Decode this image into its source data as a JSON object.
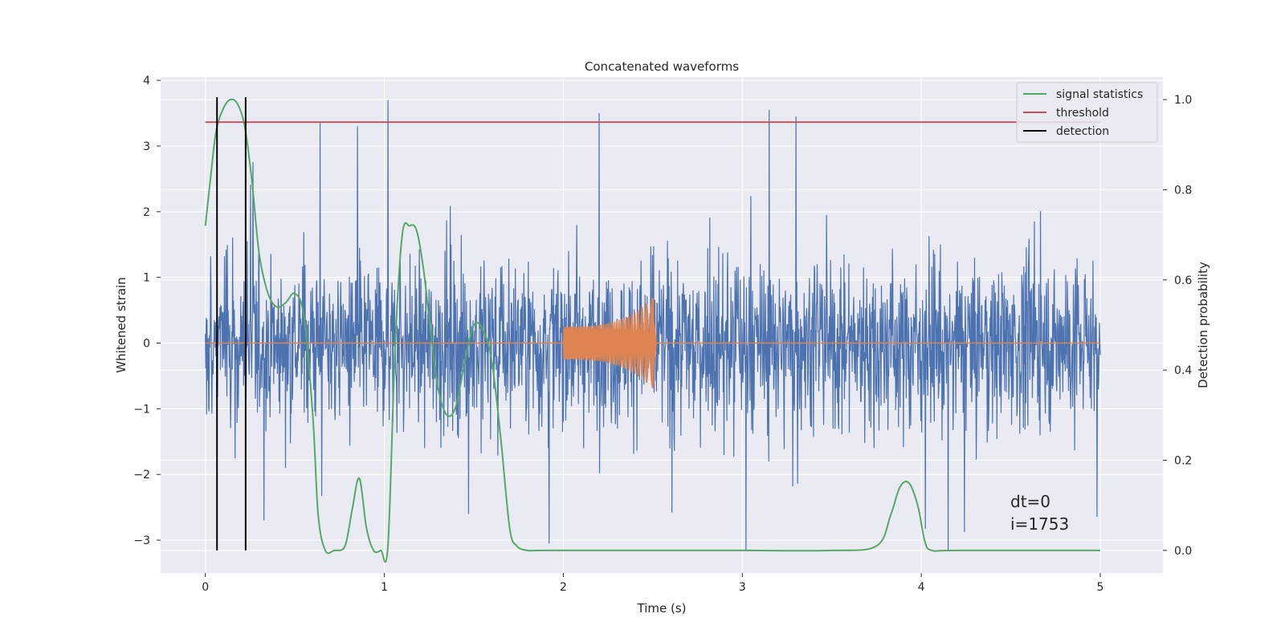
{
  "chart_data": {
    "type": "line",
    "title": "Concatenated waveforms",
    "xlabel": "Time (s)",
    "ylabel": "Whitened strain",
    "y2label": "Detection probability",
    "xlim": [
      -0.25,
      5.35
    ],
    "ylim": [
      -3.5,
      4.05
    ],
    "y2lim": [
      -0.05,
      1.05
    ],
    "x_ticks": [
      0,
      1,
      2,
      3,
      4,
      5
    ],
    "x_tick_labels": [
      "0",
      "1",
      "2",
      "3",
      "4",
      "5"
    ],
    "y_ticks": [
      -3,
      -2,
      -1,
      0,
      1,
      2,
      3,
      4
    ],
    "y_tick_labels": [
      "−3",
      "−2",
      "−1",
      "0",
      "1",
      "2",
      "3",
      "4"
    ],
    "y2_ticks": [
      0.0,
      0.2,
      0.4,
      0.6,
      0.8,
      1.0
    ],
    "y2_tick_labels": [
      "0.0",
      "0.2",
      "0.4",
      "0.6",
      "0.8",
      "1.0"
    ],
    "grid": true,
    "legend_position": "top-right",
    "colors": {
      "background": "#eaeaf2",
      "grid": "#ffffff",
      "strain": "#4c72b0",
      "waveform": "#dd8452",
      "signal_statistics": "#55a868",
      "threshold": "#c44e52",
      "detection": "#000000"
    },
    "series": [
      {
        "name": "",
        "role": "whitened-strain-noise",
        "color": "#4c72b0",
        "x_range": [
          0,
          5
        ],
        "approx_amplitude": 1.4,
        "peak_spikes": [
          {
            "x": 0.64,
            "y": 3.35
          },
          {
            "x": 0.85,
            "y": 3.3
          },
          {
            "x": 1.02,
            "y": 3.7
          },
          {
            "x": 2.2,
            "y": 3.5
          },
          {
            "x": 3.15,
            "y": 3.55
          },
          {
            "x": 3.3,
            "y": 3.45
          },
          {
            "x": 3.02,
            "y": -3.15
          },
          {
            "x": 4.15,
            "y": -3.15
          },
          {
            "x": 1.92,
            "y": -3.05
          }
        ]
      },
      {
        "name": "",
        "role": "injected-waveform",
        "color": "#dd8452",
        "x_range": [
          0,
          5
        ],
        "chirp_start": 2.0,
        "chirp_end": 2.52,
        "chirp_peak_amplitude": 0.75
      },
      {
        "name": "signal statistics",
        "axis": "right",
        "color": "#55a868",
        "x": [
          0,
          0.03,
          0.06,
          0.1,
          0.14,
          0.18,
          0.22,
          0.26,
          0.3,
          0.35,
          0.4,
          0.45,
          0.5,
          0.55,
          0.6,
          0.63,
          0.67,
          0.72,
          0.78,
          0.82,
          0.86,
          0.9,
          0.94,
          0.98,
          1.02,
          1.06,
          1.1,
          1.14,
          1.18,
          1.22,
          1.26,
          1.3,
          1.35,
          1.4,
          1.45,
          1.5,
          1.55,
          1.6,
          1.65,
          1.7,
          1.74,
          1.8,
          1.9,
          2.5,
          3.0,
          3.5,
          3.75,
          3.83,
          3.88,
          3.93,
          3.98,
          4.02,
          4.06,
          4.2,
          5.0
        ],
        "y": [
          0.72,
          0.83,
          0.93,
          0.98,
          1.0,
          0.99,
          0.94,
          0.82,
          0.66,
          0.57,
          0.54,
          0.55,
          0.57,
          0.52,
          0.3,
          0.08,
          0.0,
          0.0,
          0.01,
          0.09,
          0.16,
          0.05,
          0.0,
          0.0,
          0.01,
          0.45,
          0.7,
          0.72,
          0.71,
          0.62,
          0.48,
          0.36,
          0.3,
          0.32,
          0.42,
          0.5,
          0.49,
          0.42,
          0.25,
          0.05,
          0.01,
          0.0,
          0.0,
          0.0,
          0.0,
          0.0,
          0.01,
          0.08,
          0.14,
          0.15,
          0.1,
          0.02,
          0.0,
          0.0,
          0.0
        ]
      },
      {
        "name": "threshold",
        "axis": "right",
        "color": "#c44e52",
        "x": [
          0,
          5
        ],
        "y": [
          0.95,
          0.95
        ]
      },
      {
        "name": "detection",
        "color": "#000000",
        "type": "vline",
        "x": [
          0.065,
          0.225
        ]
      }
    ],
    "annotations": [
      "dt=0",
      "i=1753"
    ]
  }
}
